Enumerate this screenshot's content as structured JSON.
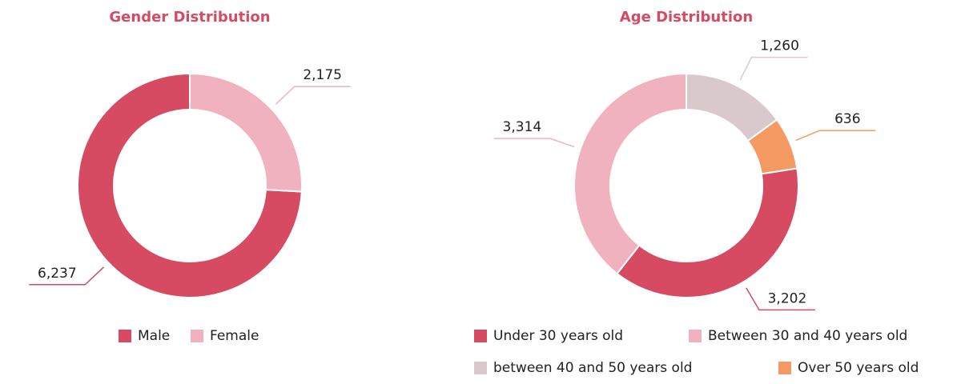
{
  "chart_data": [
    {
      "type": "pie",
      "donut": true,
      "title": "Gender Distribution",
      "categories": [
        "Male",
        "Female"
      ],
      "values": [
        6237,
        2175
      ],
      "value_labels": [
        "6,237",
        "2,175"
      ],
      "colors": [
        "#d64a62",
        "#f0b2bf"
      ],
      "legend": "bottom"
    },
    {
      "type": "pie",
      "donut": true,
      "title": "Age Distribution",
      "categories": [
        "Under 30 years old",
        "Between 30 and 40 years old",
        "between 40 and 50 years old",
        "Over 50 years old"
      ],
      "values": [
        3202,
        3314,
        1260,
        636
      ],
      "value_labels": [
        "3,202",
        "3,314",
        "1,260",
        "636"
      ],
      "colors": [
        "#d64a62",
        "#f0b2bf",
        "#d9c9cc",
        "#f59a62"
      ],
      "legend": "bottom"
    }
  ]
}
